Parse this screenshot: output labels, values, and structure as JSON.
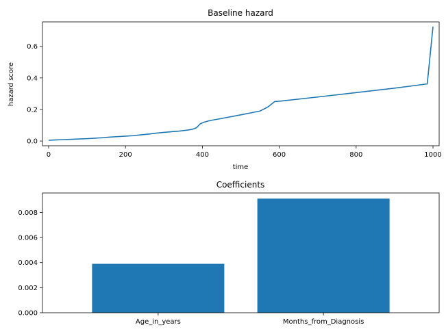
{
  "chart_data": [
    {
      "type": "line",
      "title": "Baseline hazard",
      "xlabel": "time",
      "ylabel": "hazard score",
      "xlim": [
        -16,
        1016
      ],
      "ylim": [
        -0.03,
        0.755
      ],
      "xticks": [
        0,
        200,
        400,
        600,
        800,
        1000
      ],
      "yticks": [
        0.0,
        0.2,
        0.4,
        0.6
      ],
      "grid": false,
      "color": "#1f77b4",
      "series": [
        {
          "x": [
            0,
            20,
            40,
            60,
            80,
            100,
            120,
            140,
            160,
            180,
            200,
            220,
            240,
            260,
            280,
            300,
            320,
            340,
            360,
            375,
            385,
            395,
            405,
            420,
            450,
            500,
            550,
            570,
            588,
            600,
            700,
            800,
            900,
            985,
            1000
          ],
          "y": [
            0.005,
            0.007,
            0.009,
            0.011,
            0.013,
            0.015,
            0.018,
            0.021,
            0.025,
            0.028,
            0.031,
            0.034,
            0.039,
            0.044,
            0.05,
            0.055,
            0.059,
            0.063,
            0.069,
            0.075,
            0.085,
            0.11,
            0.12,
            0.13,
            0.143,
            0.166,
            0.19,
            0.215,
            0.25,
            0.252,
            0.279,
            0.307,
            0.335,
            0.362,
            0.725
          ]
        }
      ]
    },
    {
      "type": "bar",
      "title": "Coefficients",
      "xlabel": "",
      "ylabel": "",
      "categories": [
        "Age_in_years",
        "Months_from_Diagnosis"
      ],
      "values": [
        0.0039,
        0.0091
      ],
      "ylim": [
        0,
        0.00955
      ],
      "yticks": [
        "0.000",
        "0.002",
        "0.004",
        "0.006",
        "0.008"
      ],
      "grid": false,
      "color": "#1f77b4"
    }
  ]
}
